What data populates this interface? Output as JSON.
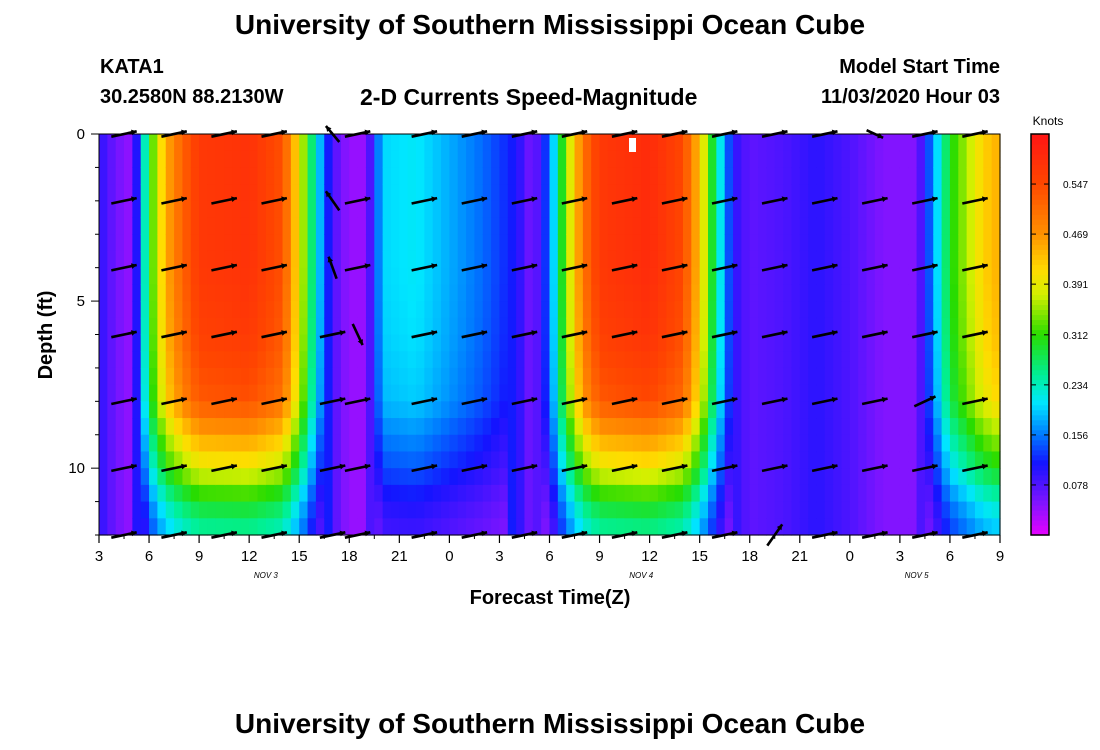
{
  "page": {
    "title_top": "University of Southern Mississippi Ocean Cube",
    "title_bottom": "University of Southern Mississippi Ocean Cube",
    "station_id": "KATA1",
    "coordinates": "30.2580N 88.2130W",
    "subtitle": "2-D Currents Speed-Magnitude",
    "model_start_label": "Model Start Time",
    "model_start_value": "11/03/2020 Hour 03"
  },
  "chart_data": {
    "type": "heatmap",
    "title": "2-D Currents Speed-Magnitude",
    "xlabel": "Forecast Time(Z)",
    "ylabel": "Depth (ft)",
    "x_unit": "hours since 11/03/2020 00Z",
    "xlim": [
      3,
      57
    ],
    "ylim": [
      0,
      12
    ],
    "y_inverted": true,
    "x_ticks": [
      {
        "h": 3,
        "label": "3"
      },
      {
        "h": 6,
        "label": "6"
      },
      {
        "h": 9,
        "label": "9"
      },
      {
        "h": 12,
        "label": "12"
      },
      {
        "h": 15,
        "label": "15"
      },
      {
        "h": 18,
        "label": "18"
      },
      {
        "h": 21,
        "label": "21"
      },
      {
        "h": 24,
        "label": "0"
      },
      {
        "h": 27,
        "label": "3"
      },
      {
        "h": 30,
        "label": "6"
      },
      {
        "h": 33,
        "label": "9"
      },
      {
        "h": 36,
        "label": "12"
      },
      {
        "h": 39,
        "label": "15"
      },
      {
        "h": 42,
        "label": "18"
      },
      {
        "h": 45,
        "label": "21"
      },
      {
        "h": 48,
        "label": "0"
      },
      {
        "h": 51,
        "label": "3"
      },
      {
        "h": 54,
        "label": "6"
      },
      {
        "h": 57,
        "label": "9"
      }
    ],
    "day_labels": [
      {
        "h": 13,
        "label": "NOV 3"
      },
      {
        "h": 35.5,
        "label": "NOV 4"
      },
      {
        "h": 52,
        "label": "NOV 5"
      }
    ],
    "y_ticks": [
      {
        "depth": 0,
        "label": "0"
      },
      {
        "depth": 5,
        "label": "5"
      },
      {
        "depth": 10,
        "label": "10"
      }
    ],
    "colorbar": {
      "label": "Knots",
      "min": 0.0,
      "max": 0.625,
      "ticks": [
        "0.547",
        "0.469",
        "0.391",
        "0.312",
        "0.234",
        "0.156",
        "0.078"
      ]
    },
    "speed_profile": {
      "note": "approximate surface-to-mid-depth speed (knots) vs forecast hour",
      "hours": [
        3,
        4,
        5,
        6,
        7,
        8,
        9,
        12,
        14,
        15,
        16,
        17,
        18,
        19,
        20,
        22,
        24,
        26,
        28,
        29,
        30,
        31,
        32,
        33,
        36,
        38,
        39,
        40,
        41,
        42,
        44,
        46,
        48,
        50,
        52,
        53,
        54,
        56,
        57
      ],
      "speeds": [
        0.1,
        0.06,
        0.04,
        0.3,
        0.45,
        0.52,
        0.57,
        0.58,
        0.54,
        0.4,
        0.22,
        0.08,
        0.04,
        0.04,
        0.2,
        0.21,
        0.18,
        0.15,
        0.11,
        0.05,
        0.15,
        0.35,
        0.5,
        0.57,
        0.59,
        0.55,
        0.43,
        0.25,
        0.1,
        0.07,
        0.08,
        0.1,
        0.08,
        0.05,
        0.05,
        0.17,
        0.3,
        0.42,
        0.45
      ]
    },
    "depth_factors": {
      "depths": [
        0,
        2,
        4,
        6,
        8,
        9,
        10,
        11,
        12
      ],
      "factors": [
        1.0,
        1.0,
        1.0,
        0.98,
        0.93,
        0.8,
        0.68,
        0.52,
        0.42
      ]
    },
    "vectors": {
      "note": "current direction in degrees clockwise from east (screen), relative magnitude",
      "hours": [
        4.5,
        7.5,
        10.5,
        13.5,
        17,
        18.5,
        22.5,
        25.5,
        28.5,
        31.5,
        34.5,
        37.5,
        40.5,
        43.5,
        46.5,
        49.5,
        52.5,
        55.5
      ],
      "depths": [
        0,
        2,
        4,
        6,
        8,
        10,
        12
      ],
      "dir_deg": -12,
      "exceptions": [
        {
          "h": 17,
          "d": 0,
          "dir": -130,
          "mag": 0.8
        },
        {
          "h": 17,
          "d": 2,
          "dir": -125,
          "mag": 0.9
        },
        {
          "h": 17,
          "d": 4,
          "dir": -110,
          "mag": 0.9
        },
        {
          "h": 18.5,
          "d": 6,
          "dir": 65,
          "mag": 0.9
        },
        {
          "h": 43.5,
          "d": 12,
          "dir": -55,
          "mag": 1.0
        },
        {
          "h": 49.5,
          "d": 0,
          "dir": 25,
          "mag": 0.7
        },
        {
          "h": 52.5,
          "d": 8,
          "dir": -25,
          "mag": 0.9
        }
      ]
    }
  }
}
